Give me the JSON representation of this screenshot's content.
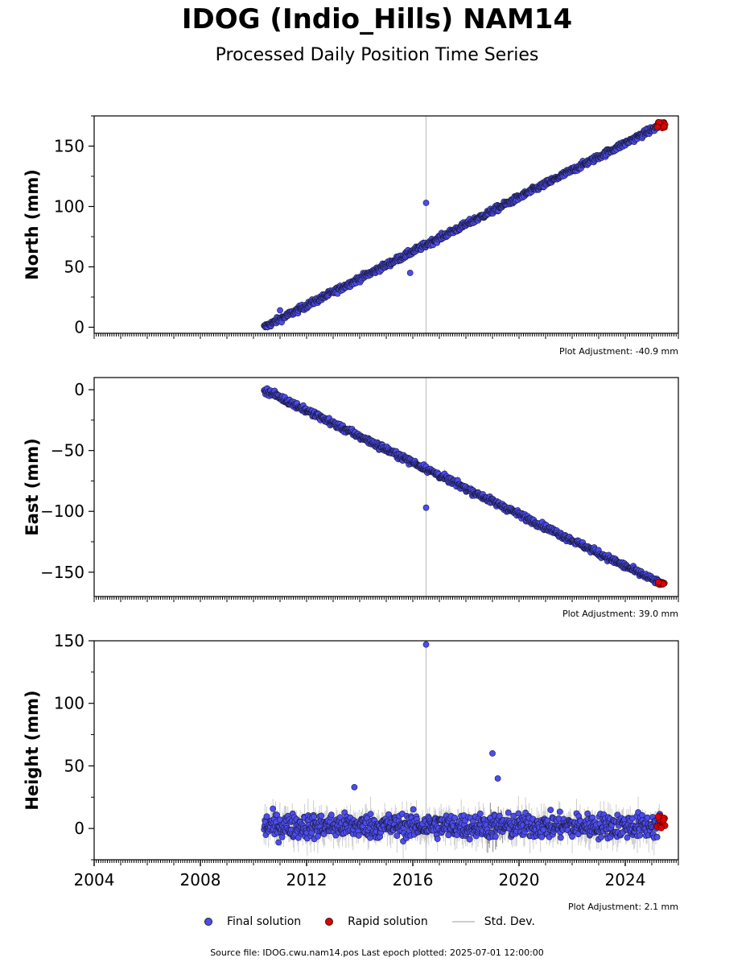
{
  "figure": {
    "title": "IDOG (Indio_Hills) NAM14",
    "subtitle": "Processed Daily Position Time Series",
    "footer": "Source file: IDOG.cwu.nam14.pos  Last epoch plotted: 2025-07-01 12:00:00",
    "colors": {
      "final": "#4c4cf0",
      "rapid": "#e00000",
      "stddev": "#cfcfcf",
      "final_edge": "#1a1a3a"
    }
  },
  "legend": {
    "final_label": "Final solution",
    "rapid_label": "Rapid solution",
    "stddev_label": "Std. Dev."
  },
  "chart_data": [
    {
      "type": "scatter",
      "ylabel": "North (mm)",
      "adjustment": "Plot Adjustment: -40.9 mm",
      "xlim": [
        2004.0,
        2026.0
      ],
      "ylim": [
        -5,
        175
      ],
      "yticks": [
        0,
        50,
        100,
        150
      ],
      "ytick_labels": [
        "0",
        "50",
        "100",
        "150"
      ],
      "trend": {
        "start": [
          2010.4,
          0
        ],
        "end": [
          2025.3,
          167
        ],
        "noise": 1.8
      },
      "outliers": [
        [
          2016.5,
          103
        ],
        [
          2015.9,
          45
        ],
        [
          2011.0,
          14
        ]
      ],
      "rapid": {
        "start": 2025.2,
        "end": 2025.5,
        "y_start": 165,
        "y_end": 170
      },
      "gap_line": 2016.5
    },
    {
      "type": "scatter",
      "ylabel": "East (mm)",
      "adjustment": "Plot Adjustment: 39.0 mm",
      "xlim": [
        2004.0,
        2026.0
      ],
      "ylim": [
        -170,
        10
      ],
      "yticks": [
        0,
        -50,
        -100,
        -150
      ],
      "ytick_labels": [
        "0",
        "−50",
        "−100",
        "−150"
      ],
      "trend": {
        "start": [
          2010.4,
          0
        ],
        "end": [
          2025.3,
          -159
        ],
        "noise": 1.8
      },
      "outliers": [
        [
          2016.5,
          -97
        ]
      ],
      "rapid": {
        "start": 2025.2,
        "end": 2025.5,
        "y_start": -158,
        "y_end": -160
      },
      "gap_line": 2016.5
    },
    {
      "type": "scatter",
      "ylabel": "Height (mm)",
      "adjustment": "Plot Adjustment: 2.1 mm",
      "xlim": [
        2004.0,
        2026.0
      ],
      "ylim": [
        -25,
        150
      ],
      "yticks": [
        0,
        50,
        100,
        150
      ],
      "ytick_labels": [
        "0",
        "50",
        "100",
        "150"
      ],
      "xticks": [
        2004,
        2008,
        2012,
        2016,
        2020,
        2024
      ],
      "xtick_labels": [
        "2004",
        "2008",
        "2012",
        "2016",
        "2020",
        "2024"
      ],
      "trend": {
        "start": [
          2010.4,
          2
        ],
        "end": [
          2025.3,
          2
        ],
        "noise": 7
      },
      "outliers": [
        [
          2016.5,
          147
        ],
        [
          2013.8,
          33
        ],
        [
          2019.0,
          60
        ],
        [
          2019.2,
          40
        ]
      ],
      "rapid": {
        "start": 2025.2,
        "end": 2025.5,
        "y_start": 0,
        "y_end": 10
      },
      "gap_line": 2016.5
    }
  ]
}
